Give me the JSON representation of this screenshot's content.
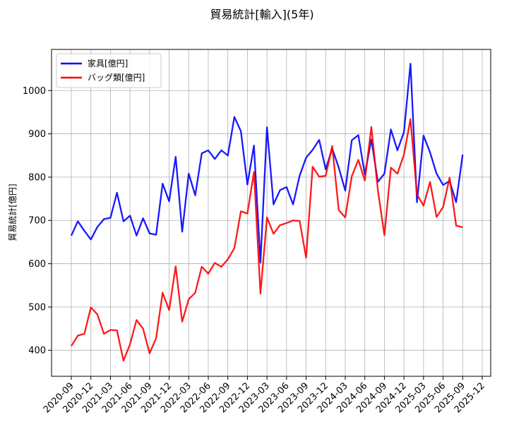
{
  "chart_data": {
    "type": "line",
    "title": "貿易統計[輸入](5年)",
    "xlabel": "",
    "ylabel": "貿易統計[億円]",
    "ylim": [
      340,
      1095
    ],
    "yticks": [
      400,
      500,
      600,
      700,
      800,
      900,
      1000
    ],
    "grid": true,
    "legend_position": "upper-left",
    "x_tick_labels": [
      "2020-09",
      "2020-12",
      "2021-03",
      "2021-06",
      "2021-09",
      "2021-12",
      "2022-03",
      "2022-06",
      "2022-09",
      "2022-12",
      "2023-03",
      "2023-06",
      "2023-09",
      "2023-12",
      "2024-03",
      "2024-06",
      "2024-09",
      "2024-12",
      "2025-03",
      "2025-06",
      "2025-09",
      "2025-12"
    ],
    "x_start": "2020-09",
    "series": [
      {
        "name": "家具[億円]",
        "color": "#0000ff",
        "values": [
          665,
          698,
          676,
          656,
          685,
          703,
          706,
          764,
          698,
          711,
          665,
          705,
          670,
          667,
          785,
          744,
          847,
          674,
          808,
          758,
          855,
          862,
          842,
          862,
          850,
          939,
          906,
          783,
          873,
          603,
          915,
          737,
          770,
          777,
          737,
          803,
          845,
          863,
          886,
          818,
          866,
          822,
          769,
          885,
          897,
          806,
          887,
          789,
          808,
          910,
          862,
          904,
          1062,
          742,
          896,
          857,
          808,
          782,
          791,
          742,
          852
        ]
      },
      {
        "name": "バッグ類[億円]",
        "color": "#ff0000",
        "values": [
          410,
          434,
          438,
          499,
          483,
          438,
          447,
          446,
          376,
          414,
          470,
          450,
          393,
          428,
          533,
          493,
          594,
          466,
          518,
          533,
          593,
          577,
          602,
          593,
          610,
          636,
          721,
          716,
          812,
          531,
          707,
          669,
          689,
          694,
          700,
          699,
          614,
          824,
          801,
          803,
          872,
          724,
          707,
          802,
          840,
          792,
          916,
          770,
          666,
          822,
          808,
          852,
          934,
          760,
          734,
          789,
          708,
          731,
          799,
          688,
          684
        ]
      }
    ]
  }
}
